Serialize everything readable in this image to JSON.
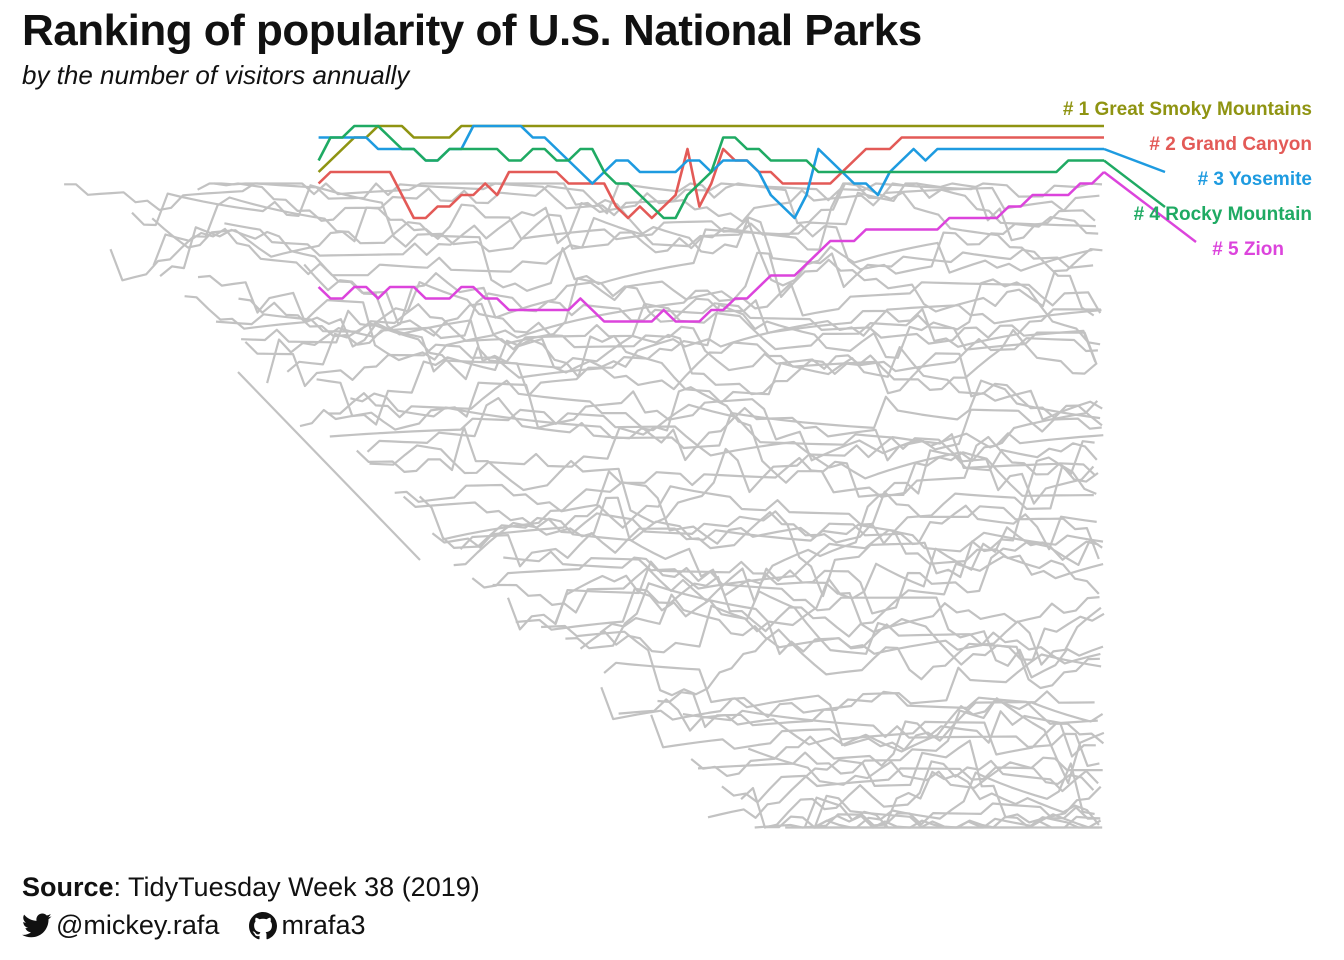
{
  "header": {
    "title": "Ranking of popularity of U.S. National Parks",
    "subtitle": "by the number of visitors annually"
  },
  "caption": {
    "source_label": "Source",
    "source_text": ": TidyTuesday Week 38 (2019)",
    "twitter_icon": "twitter-icon",
    "twitter_handle": "@mickey.rafa",
    "github_icon": "github-icon",
    "github_handle": "mrafa3"
  },
  "chart_data": {
    "type": "line",
    "title": "Ranking of popularity of U.S. National Parks",
    "subtitle": "by the number of visitors annually",
    "xlabel": "",
    "ylabel": "",
    "x_axis_shown": false,
    "y_axis_shown": false,
    "y_reversed": true,
    "grid": false,
    "background_series_color": "#c2c2c2",
    "background_series_description": "all other parks shown as gray rank lines",
    "highlighted_series": [
      {
        "name": "Great Smoky Mountains",
        "label": "# 1 Great Smoky Mountains",
        "final_rank": 1,
        "color": "#8f9412",
        "ranks": [
          5,
          4,
          3,
          2,
          2,
          1,
          1,
          1,
          2,
          2,
          2,
          2,
          1,
          1,
          1,
          1,
          1,
          1,
          1,
          1,
          1,
          1,
          1,
          1,
          1,
          1,
          1,
          1,
          1,
          1,
          1,
          1,
          1,
          1,
          1,
          1,
          1,
          1,
          1,
          1,
          1,
          1,
          1,
          1,
          1,
          1,
          1,
          1,
          1,
          1,
          1,
          1,
          1,
          1,
          1,
          1,
          1,
          1,
          1,
          1,
          1,
          1,
          1,
          1,
          1,
          1,
          1
        ]
      },
      {
        "name": "Grand Canyon",
        "label": "# 2 Grand Canyon",
        "final_rank": 2,
        "color": "#e35a57",
        "ranks": [
          6,
          5,
          5,
          5,
          5,
          5,
          5,
          7,
          9,
          9,
          8,
          8,
          7,
          7,
          6,
          7,
          5,
          5,
          5,
          5,
          5,
          6,
          6,
          6,
          6,
          8,
          9,
          8,
          9,
          8,
          7,
          3,
          8,
          6,
          3,
          4,
          4,
          5,
          5,
          6,
          6,
          6,
          6,
          6,
          5,
          4,
          3,
          3,
          3,
          2,
          2,
          2,
          2,
          2,
          2,
          2,
          2,
          2,
          2,
          2,
          2,
          2,
          2,
          2,
          2,
          2,
          2
        ]
      },
      {
        "name": "Yosemite",
        "label": "# 3 Yosemite",
        "final_rank": 3,
        "color": "#1e9be0",
        "ranks": [
          2,
          2,
          2,
          2,
          2,
          3,
          3,
          3,
          3,
          4,
          4,
          3,
          3,
          1,
          1,
          1,
          1,
          1,
          2,
          2,
          3,
          4,
          5,
          6,
          5,
          4,
          4,
          5,
          5,
          5,
          5,
          4,
          4,
          5,
          4,
          4,
          4,
          5,
          7,
          8,
          9,
          7,
          3,
          4,
          5,
          6,
          6,
          7,
          5,
          4,
          3,
          4,
          3,
          3,
          3,
          3,
          3,
          3,
          3,
          3,
          3,
          3,
          3,
          3,
          3,
          3,
          3
        ]
      },
      {
        "name": "Rocky Mountain",
        "label": "# 4 Rocky Mountain",
        "final_rank": 4,
        "color": "#1faa63",
        "ranks": [
          4,
          2,
          2,
          1,
          1,
          1,
          2,
          3,
          3,
          4,
          4,
          3,
          3,
          3,
          3,
          3,
          4,
          4,
          3,
          3,
          4,
          4,
          3,
          3,
          5,
          6,
          6,
          7,
          8,
          9,
          9,
          7,
          6,
          5,
          2,
          2,
          3,
          3,
          4,
          4,
          4,
          4,
          5,
          5,
          5,
          5,
          5,
          5,
          5,
          5,
          5,
          5,
          5,
          5,
          5,
          5,
          5,
          5,
          5,
          5,
          5,
          5,
          5,
          4,
          4,
          4,
          4
        ]
      },
      {
        "name": "Zion",
        "label": "# 5 Zion",
        "final_rank": 5,
        "color": "#dc44dc",
        "ranks": [
          15,
          16,
          16,
          15,
          15,
          16,
          15,
          15,
          15,
          16,
          16,
          16,
          15,
          15,
          16,
          16,
          17,
          17,
          17,
          17,
          17,
          17,
          16,
          17,
          18,
          18,
          18,
          18,
          18,
          17,
          18,
          18,
          18,
          17,
          17,
          16,
          16,
          15,
          14,
          14,
          14,
          13,
          12,
          11,
          11,
          11,
          10,
          10,
          10,
          10,
          10,
          10,
          10,
          9,
          9,
          9,
          9,
          9,
          8,
          8,
          7,
          7,
          7,
          7,
          6,
          6,
          5
        ]
      }
    ]
  }
}
